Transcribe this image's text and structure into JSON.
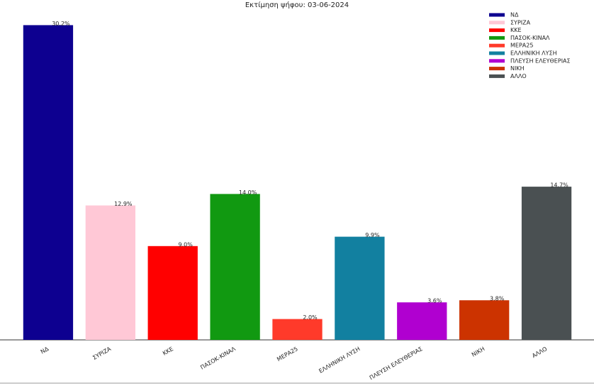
{
  "chart_data": {
    "type": "bar",
    "title": "Εκτίμηση ψήφου: 03-06-2024",
    "categories": [
      "ΝΔ",
      "ΣΥΡΙΖΑ",
      "ΚΚΕ",
      "ΠΑΣΟΚ-ΚΙΝΑΛ",
      "ΜΕΡΑ25",
      "ΕΛΛΗΝΙΚΗ ΛΥΣΗ",
      "ΠΛΕΥΣΗ ΕΛΕΥΘΕΡΙΑΣ",
      "ΝΙΚΗ",
      "ΑΛΛΟ"
    ],
    "values": [
      30.2,
      12.9,
      9.0,
      14.0,
      2.0,
      9.9,
      3.6,
      3.8,
      14.7
    ],
    "value_labels": [
      "30.2%",
      "12.9%",
      "9.0%",
      "14.0%",
      "2.0%",
      "9.9%",
      "3.6%",
      "3.8%",
      "14.7%"
    ],
    "colors": [
      "#0d0090",
      "#ffc8d6",
      "#ff0000",
      "#119911",
      "#ff3a2a",
      "#1280a0",
      "#b000d0",
      "#cc3300",
      "#4a5052"
    ],
    "ylim": [
      0,
      32
    ],
    "legend": "upper right"
  }
}
